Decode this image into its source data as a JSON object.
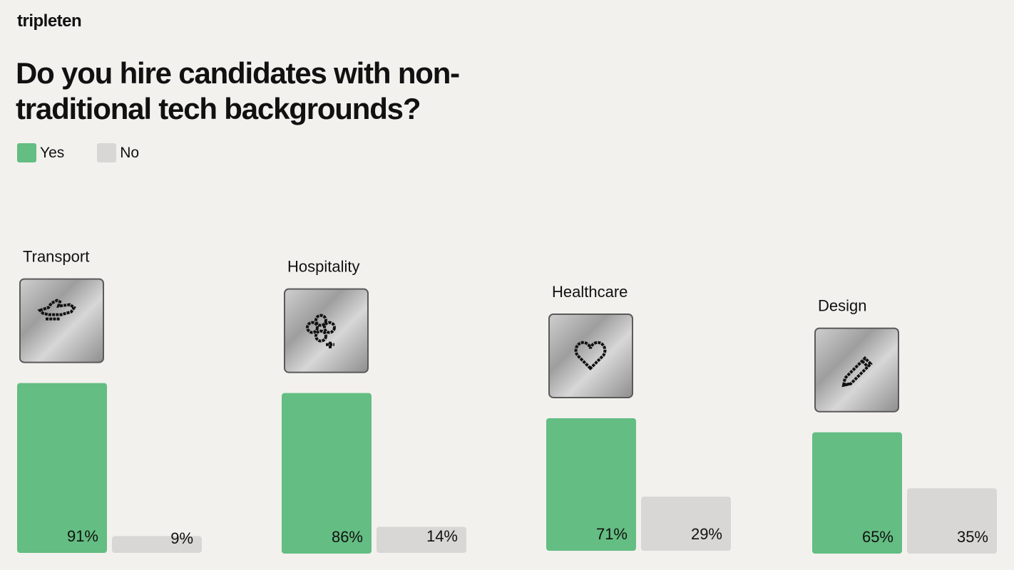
{
  "brand": "tripleten",
  "title": "Do you hire candidates with non-traditional tech backgrounds?",
  "legend": [
    {
      "label": "Yes",
      "color": "#64bd82"
    },
    {
      "label": "No",
      "color": "#d8d7d5"
    }
  ],
  "chart_data": {
    "type": "bar",
    "categories": [
      "Transport",
      "Hospitality",
      "Healthcare",
      "Design"
    ],
    "icons": [
      "plane-icon",
      "flower-icon",
      "heart-icon",
      "pencil-icon"
    ],
    "series": [
      {
        "name": "Yes",
        "values": [
          91,
          86,
          71,
          65
        ],
        "color": "#64bd82"
      },
      {
        "name": "No",
        "values": [
          9,
          14,
          29,
          35
        ],
        "color": "#d8d7d5"
      }
    ],
    "value_labels": {
      "Yes": [
        "91%",
        "86%",
        "71%",
        "65%"
      ],
      "No": [
        "9%",
        "14%",
        "29%",
        "35%"
      ]
    },
    "ylim": [
      0,
      100
    ],
    "grid": false,
    "legend_position": "top-left"
  }
}
